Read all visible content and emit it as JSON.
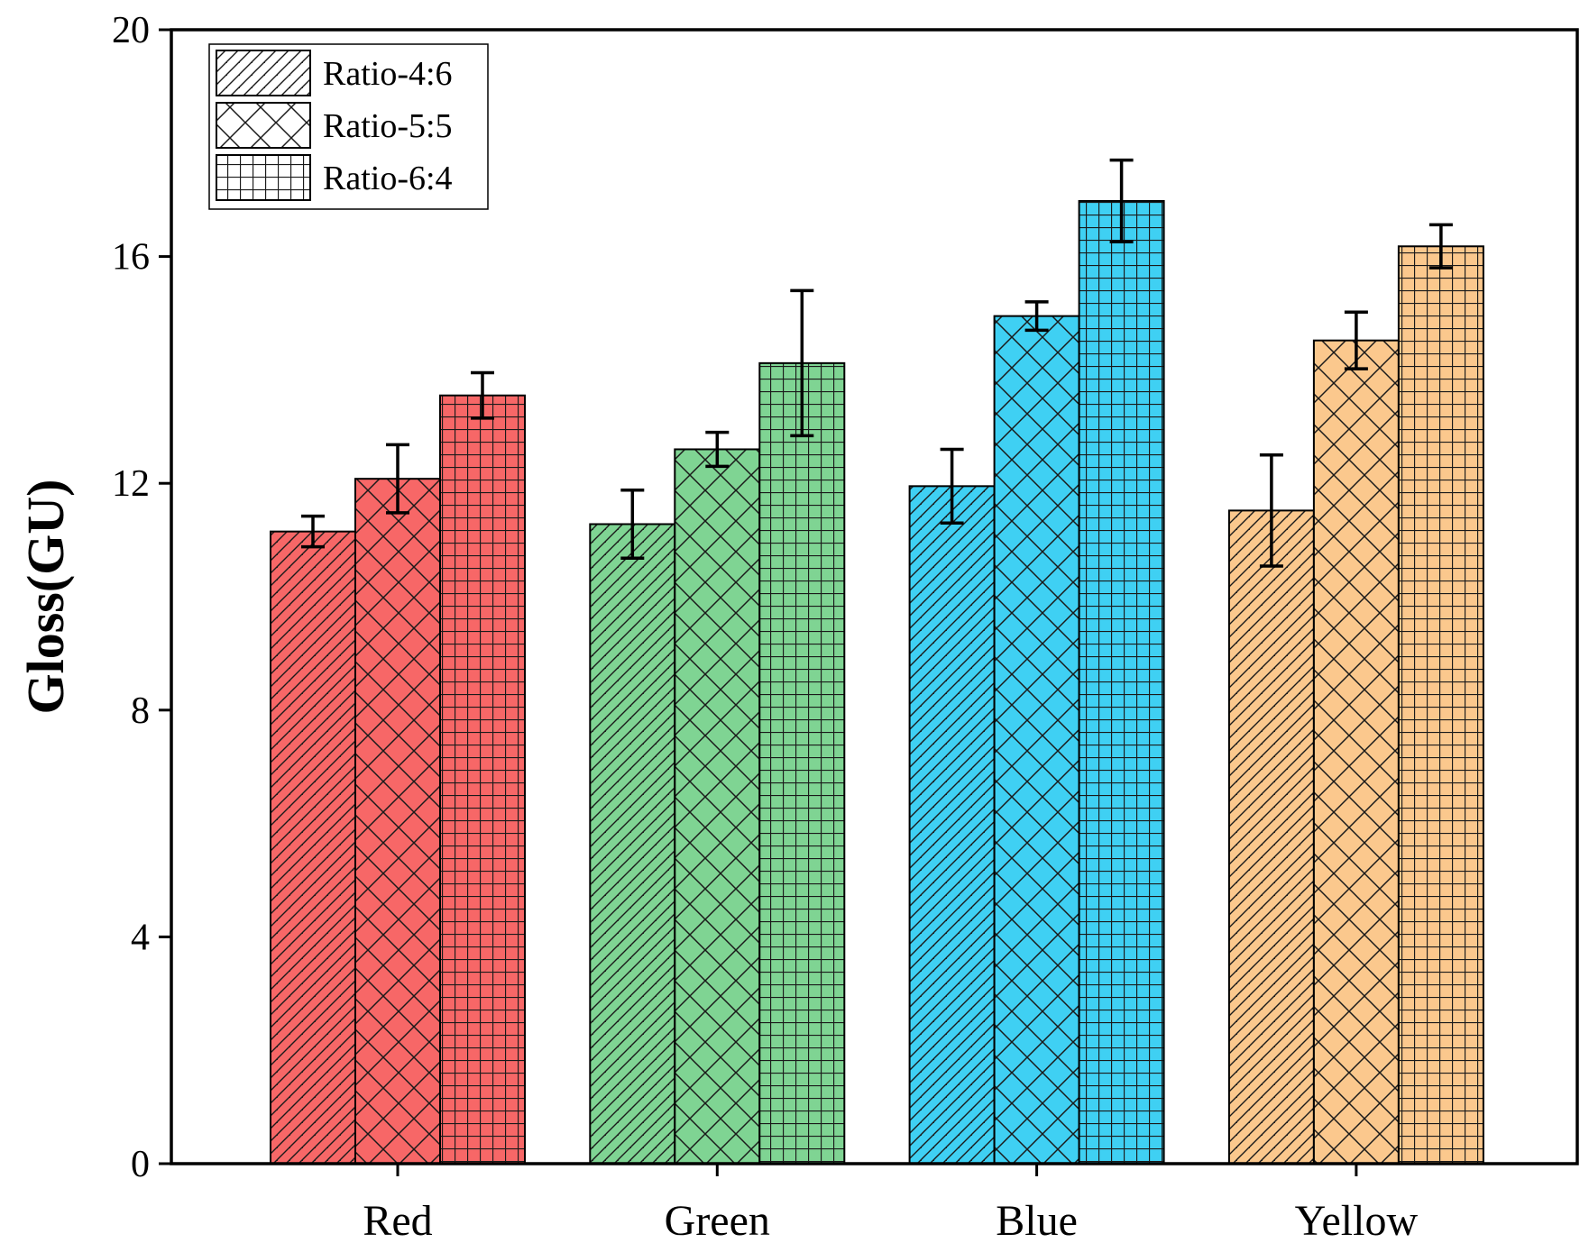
{
  "chart_data": {
    "type": "bar",
    "title": "",
    "xlabel": "",
    "ylabel": "Gloss(GU)",
    "ylim": [
      0,
      20
    ],
    "yticks": [
      0,
      4,
      8,
      12,
      16,
      20
    ],
    "categories": [
      "Red",
      "Green",
      "Blue",
      "Yellow"
    ],
    "category_colors": [
      "#f76767",
      "#7fd493",
      "#3fd0f3",
      "#fbc88d"
    ],
    "legend_position": "top-left",
    "series": [
      {
        "name": "Ratio-4:6",
        "pattern": "diagonal",
        "values": [
          11.15,
          11.28,
          11.95,
          11.52
        ],
        "errors": [
          0.27,
          0.6,
          0.65,
          0.98
        ]
      },
      {
        "name": "Ratio-5:5",
        "pattern": "crosshatch",
        "values": [
          12.08,
          12.6,
          14.95,
          14.52
        ],
        "errors": [
          0.6,
          0.3,
          0.25,
          0.5
        ]
      },
      {
        "name": "Ratio-6:4",
        "pattern": "grid",
        "values": [
          13.55,
          14.12,
          16.98,
          16.18
        ],
        "errors": [
          0.4,
          1.28,
          0.72,
          0.38
        ]
      }
    ]
  }
}
